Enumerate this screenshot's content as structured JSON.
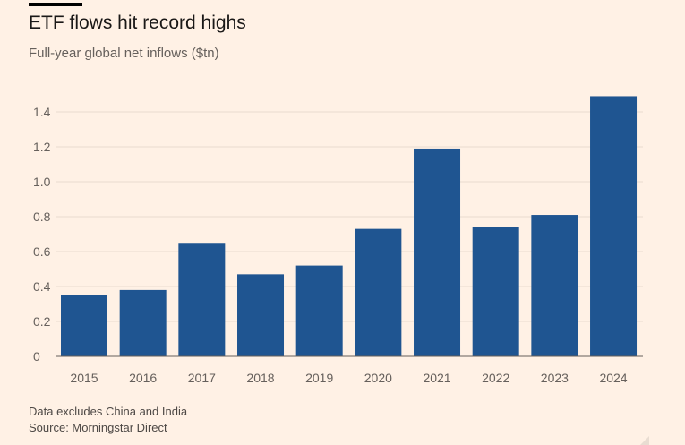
{
  "chart_data": {
    "type": "bar",
    "title": "ETF flows hit record highs",
    "subtitle": "Full-year global net inflows ($tn)",
    "categories": [
      "2015",
      "2016",
      "2017",
      "2018",
      "2019",
      "2020",
      "2021",
      "2022",
      "2023",
      "2024"
    ],
    "values": [
      0.35,
      0.38,
      0.65,
      0.47,
      0.52,
      0.73,
      1.19,
      0.74,
      0.81,
      1.49
    ],
    "xlabel": "",
    "ylabel": "",
    "ylim": [
      0,
      1.4
    ],
    "yticks": [
      "0",
      "0.2",
      "0.4",
      "0.6",
      "0.8",
      "1.0",
      "1.2",
      "1.4"
    ],
    "grid": true,
    "bar_color": "#1f5591",
    "notes": [
      "Data excludes China and India",
      "Source: Morningstar Direct"
    ]
  }
}
